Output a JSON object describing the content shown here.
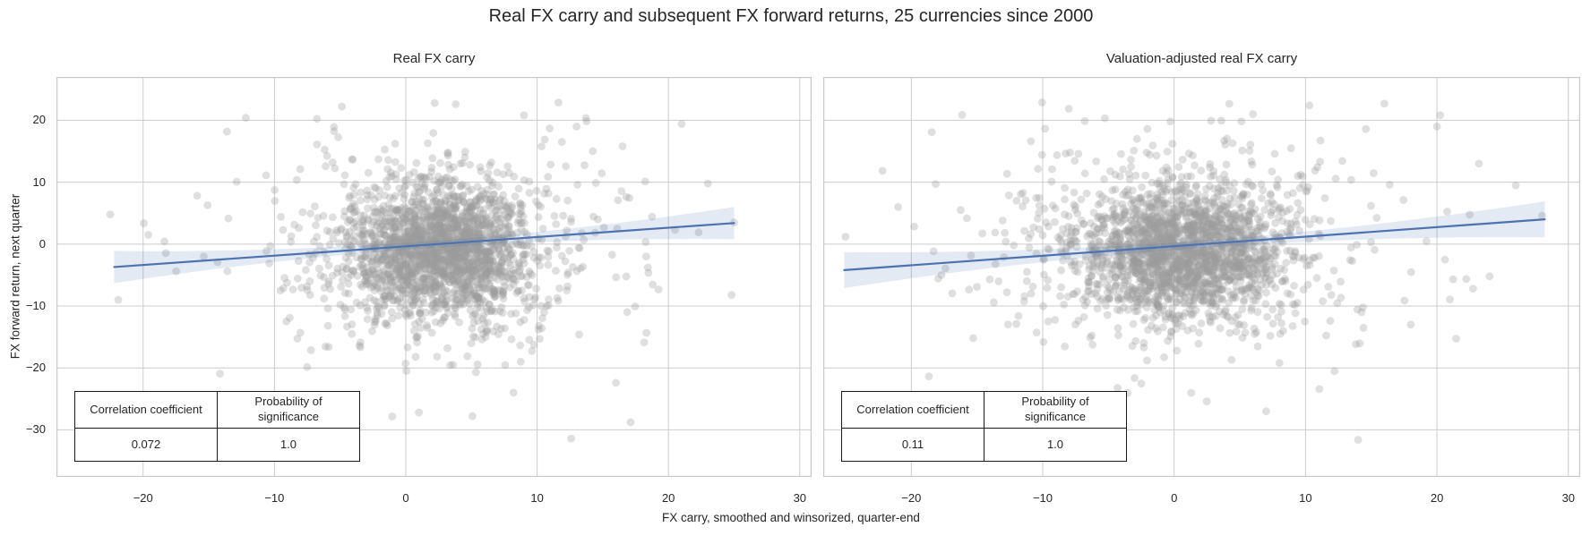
{
  "figure": {
    "title": "Real FX carry and subsequent FX forward returns, 25 currencies since 2000",
    "xlabel": "FX carry, smoothed and winsorized, quarter-end",
    "ylabel": "FX forward return, next quarter"
  },
  "stats_table": {
    "col1_header": "Correlation coefficient",
    "col2_header": "Probability of significance"
  },
  "colors": {
    "scatter_point": "#9a9a9a",
    "scatter_opacity": 0.32,
    "regression_line": "#4c72b0",
    "confidence_band": "#4c72b0",
    "confidence_band_opacity": 0.15,
    "gridline": "#cccccc",
    "panel_border": "#c8c8c8",
    "text": "#262626",
    "table_border": "#1a1a1a"
  },
  "chart_data": [
    {
      "type": "scatter",
      "title": "Real FX carry",
      "xlim": [
        -26.6,
        30.9
      ],
      "ylim": [
        -37.6,
        27.0
      ],
      "xticks": [
        -20,
        -10,
        0,
        10,
        20,
        30
      ],
      "yticks": [
        20,
        10,
        0,
        -10,
        -20,
        -30
      ],
      "show_ytick_labels": true,
      "grid": true,
      "legend": null,
      "regression": {
        "x_start": -22.2,
        "y_start": -3.7,
        "x_end": 25.0,
        "y_end": 3.4,
        "ci_halfwidth_center": 0.55,
        "ci_halfwidth_ends": 2.6
      },
      "scatter_summary": {
        "n_points": 2300,
        "center": [
          2.3,
          -1.0
        ],
        "core_std": [
          3.6,
          5.4
        ],
        "halo_std": [
          7.0,
          9.5
        ],
        "far_std": [
          11.0,
          13.0
        ],
        "core_frac": 0.84,
        "halo_frac": 0.13,
        "x_clip": [
          -23.2,
          25.3
        ],
        "y_clip": [
          -33.0,
          23.2
        ]
      },
      "outliers": [
        [
          -22.5,
          4.8
        ],
        [
          -19.6,
          1.5
        ],
        [
          2.2,
          22.8
        ],
        [
          3.8,
          22.6
        ],
        [
          9.0,
          20.8
        ],
        [
          13.0,
          19.0
        ],
        [
          21.0,
          19.4
        ],
        [
          16.5,
          15.8
        ],
        [
          20.5,
          2.3
        ],
        [
          22.3,
          1.9
        ],
        [
          25.0,
          3.5
        ],
        [
          24.8,
          -8.2
        ],
        [
          12.6,
          -31.4
        ],
        [
          16.0,
          -22.4
        ],
        [
          13.2,
          -14.6
        ],
        [
          8.2,
          -24.0
        ],
        [
          1.0,
          -27.2
        ],
        [
          23.0,
          9.8
        ]
      ],
      "stats": {
        "correlation_coefficient": "0.072",
        "probability_of_significance": "1.0"
      }
    },
    {
      "type": "scatter",
      "title": "Valuation-adjusted real FX carry",
      "xlim": [
        -26.7,
        30.9
      ],
      "ylim": [
        -37.6,
        27.0
      ],
      "xticks": [
        -20,
        -10,
        0,
        10,
        20,
        30
      ],
      "yticks": [
        20,
        10,
        0,
        -10,
        -20,
        -30
      ],
      "show_ytick_labels": false,
      "grid": true,
      "legend": null,
      "regression": {
        "x_start": -25.1,
        "y_start": -4.2,
        "x_end": 28.2,
        "y_end": 4.0,
        "ci_halfwidth_center": 0.6,
        "ci_halfwidth_ends": 2.9
      },
      "scatter_summary": {
        "n_points": 2300,
        "center": [
          0.6,
          -1.0
        ],
        "core_std": [
          4.0,
          5.4
        ],
        "halo_std": [
          7.5,
          9.5
        ],
        "far_std": [
          11.5,
          13.0
        ],
        "core_frac": 0.84,
        "halo_frac": 0.13,
        "x_clip": [
          -25.3,
          28.5
        ],
        "y_clip": [
          -33.0,
          23.2
        ]
      },
      "outliers": [
        [
          -25.0,
          1.2
        ],
        [
          -21.0,
          6.0
        ],
        [
          -17.7,
          -5.0
        ],
        [
          -13.6,
          -3.2
        ],
        [
          16.0,
          22.7
        ],
        [
          10.3,
          22.4
        ],
        [
          6.0,
          21.0
        ],
        [
          20.0,
          19.0
        ],
        [
          23.2,
          13.0
        ],
        [
          28.0,
          4.6
        ],
        [
          24.0,
          -5.2
        ],
        [
          14.0,
          -31.6
        ],
        [
          7.0,
          -27.0
        ],
        [
          18.0,
          -13.0
        ],
        [
          12.2,
          -20.5
        ],
        [
          26.0,
          9.5
        ],
        [
          16.4,
          9.6
        ],
        [
          20.6,
          -2.5
        ]
      ],
      "stats": {
        "correlation_coefficient": "0.11",
        "probability_of_significance": "1.0"
      }
    }
  ]
}
